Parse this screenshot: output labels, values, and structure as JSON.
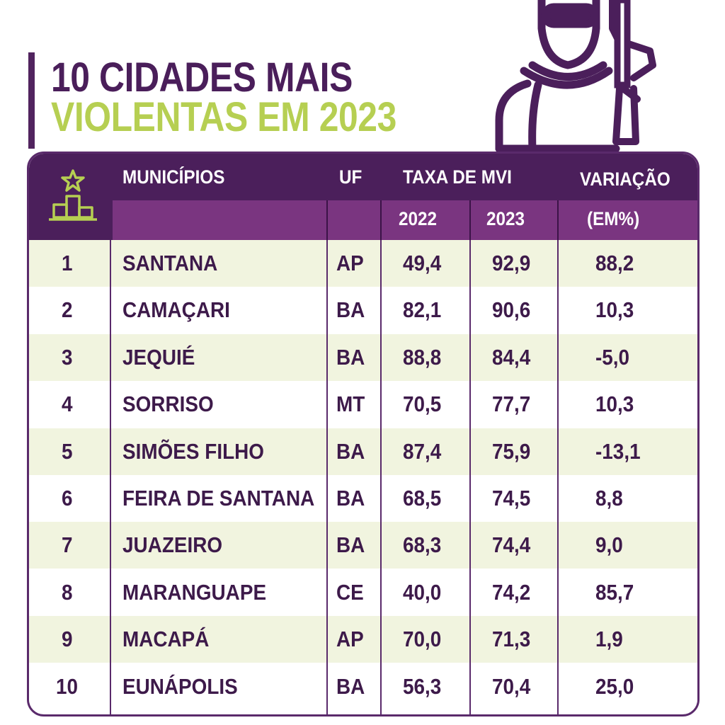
{
  "title": {
    "line1": "10 CIDADES MAIS",
    "line2": "VIOLENTAS EM 2023"
  },
  "colors": {
    "purple_dark": "#4b1f5b",
    "purple_mid": "#7a3580",
    "lime": "#b6cf52",
    "row_tint": "#f1f4df"
  },
  "icons": {
    "header_icon": "podium-star-icon",
    "illustration": "masked-gunman-icon"
  },
  "chart_data": {
    "type": "table",
    "header": {
      "municipios": "MUNICÍPIOS",
      "uf": "UF",
      "taxa": "TAXA DE MVI",
      "y2022": "2022",
      "y2023": "2023",
      "variacao": "VARIAÇÃO",
      "variacao_unit": "(EM%)"
    },
    "rows": [
      {
        "rank": "1",
        "municipio": "SANTANA",
        "uf": "AP",
        "y2022": "49,4",
        "y2023": "92,9",
        "variacao": "88,2"
      },
      {
        "rank": "2",
        "municipio": "CAMAÇARI",
        "uf": "BA",
        "y2022": "82,1",
        "y2023": "90,6",
        "variacao": "10,3"
      },
      {
        "rank": "3",
        "municipio": "JEQUIÉ",
        "uf": "BA",
        "y2022": "88,8",
        "y2023": "84,4",
        "variacao": "-5,0"
      },
      {
        "rank": "4",
        "municipio": "SORRISO",
        "uf": "MT",
        "y2022": "70,5",
        "y2023": "77,7",
        "variacao": "10,3"
      },
      {
        "rank": "5",
        "municipio": "SIMÕES FILHO",
        "uf": "BA",
        "y2022": "87,4",
        "y2023": "75,9",
        "variacao": "-13,1"
      },
      {
        "rank": "6",
        "municipio": "FEIRA DE SANTANA",
        "uf": "BA",
        "y2022": "68,5",
        "y2023": "74,5",
        "variacao": "8,8"
      },
      {
        "rank": "7",
        "municipio": "JUAZEIRO",
        "uf": "BA",
        "y2022": "68,3",
        "y2023": "74,4",
        "variacao": "9,0"
      },
      {
        "rank": "8",
        "municipio": "MARANGUAPE",
        "uf": "CE",
        "y2022": "40,0",
        "y2023": "74,2",
        "variacao": "85,7"
      },
      {
        "rank": "9",
        "municipio": "MACAPÁ",
        "uf": "AP",
        "y2022": "70,0",
        "y2023": "71,3",
        "variacao": "1,9"
      },
      {
        "rank": "10",
        "municipio": "EUNÁPOLIS",
        "uf": "BA",
        "y2022": "56,3",
        "y2023": "70,4",
        "variacao": "25,0"
      }
    ]
  }
}
